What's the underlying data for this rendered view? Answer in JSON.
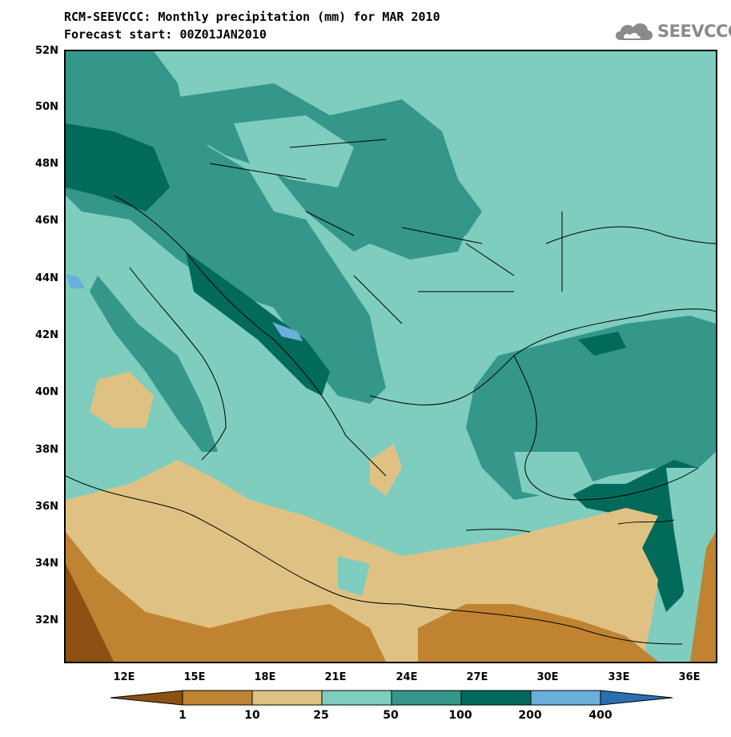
{
  "title": {
    "line1": "RCM-SEEVCCC: Monthly precipitation (mm) for MAR 2010",
    "line2": "Forecast start: 00Z01JAN2010"
  },
  "logo": {
    "text": "SEEVCCC",
    "icon": "cloud-logo-icon"
  },
  "axes": {
    "lat_labels": [
      "52N",
      "50N",
      "48N",
      "46N",
      "44N",
      "42N",
      "40N",
      "38N",
      "36N",
      "34N",
      "32N"
    ],
    "lon_labels": [
      "12E",
      "15E",
      "18E",
      "21E",
      "24E",
      "27E",
      "30E",
      "33E",
      "36E"
    ]
  },
  "colorbar": {
    "labels": [
      "1",
      "10",
      "25",
      "50",
      "100",
      "200",
      "400"
    ],
    "colors": [
      "#8c5012",
      "#c08332",
      "#dfc283",
      "#7ecdbe",
      "#35968a",
      "#016a5a",
      "#6aaedc",
      "#2c6fb0"
    ]
  }
}
